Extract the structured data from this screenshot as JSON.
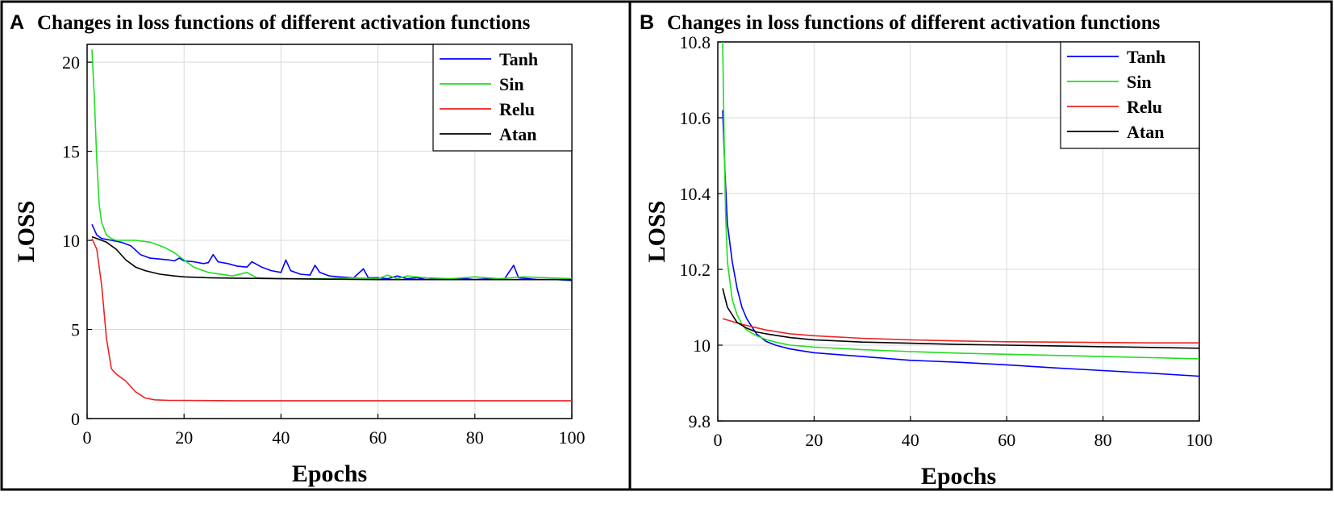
{
  "chart_data": [
    {
      "panel": "A",
      "type": "line",
      "title": "Changes in loss functions of different activation functions",
      "xlabel": "Epochs",
      "ylabel": "LOSS",
      "xlim": [
        0,
        100
      ],
      "ylim": [
        0,
        21
      ],
      "xticks": [
        0,
        20,
        40,
        60,
        80,
        100
      ],
      "yticks": [
        0,
        5,
        10,
        15,
        20
      ],
      "ytick_labels": [
        "0",
        "5",
        "10",
        "15",
        "20"
      ],
      "grid": true,
      "legend_position": "top-right",
      "series": [
        {
          "name": "Tanh",
          "color": "#0000ff",
          "x": [
            1,
            2,
            3,
            5,
            7,
            9,
            11,
            13,
            15,
            17,
            18,
            19,
            20,
            22,
            24,
            25,
            26,
            27,
            29,
            31,
            33,
            34,
            36,
            38,
            40,
            41,
            42,
            44,
            46,
            47,
            48,
            50,
            52,
            55,
            57,
            58,
            60,
            62,
            64,
            66,
            68,
            70,
            72,
            75,
            78,
            80,
            83,
            86,
            87,
            88,
            89,
            91,
            93,
            95,
            97,
            100
          ],
          "y": [
            10.9,
            10.3,
            10.1,
            10.0,
            9.9,
            9.7,
            9.2,
            9.0,
            8.95,
            8.9,
            8.85,
            9.0,
            8.85,
            8.8,
            8.7,
            8.75,
            9.2,
            8.8,
            8.7,
            8.55,
            8.5,
            8.8,
            8.5,
            8.3,
            8.2,
            8.9,
            8.3,
            8.1,
            8.05,
            8.6,
            8.2,
            8.0,
            7.95,
            7.9,
            8.4,
            7.9,
            7.9,
            7.85,
            8.0,
            7.85,
            7.9,
            7.8,
            7.85,
            7.8,
            7.85,
            7.8,
            7.85,
            7.8,
            8.2,
            8.6,
            7.9,
            7.85,
            7.8,
            7.8,
            7.8,
            7.75
          ]
        },
        {
          "name": "Sin",
          "color": "#22dd22",
          "x": [
            1,
            1.5,
            2,
            2.5,
            3,
            4,
            5,
            6,
            8,
            10,
            13,
            16,
            18,
            20,
            22,
            25,
            30,
            33,
            35,
            40,
            45,
            50,
            55,
            60,
            62,
            64,
            66,
            70,
            75,
            80,
            85,
            90,
            95,
            100
          ],
          "y": [
            20.7,
            18.0,
            14.5,
            12.0,
            11.0,
            10.3,
            10.1,
            10.0,
            10.0,
            10.0,
            9.9,
            9.6,
            9.3,
            8.9,
            8.5,
            8.2,
            8.0,
            8.2,
            7.9,
            7.85,
            7.85,
            7.85,
            7.9,
            7.85,
            8.05,
            7.85,
            8.0,
            7.9,
            7.85,
            7.95,
            7.85,
            7.95,
            7.9,
            7.85
          ]
        },
        {
          "name": "Relu",
          "color": "#ee2222",
          "x": [
            1,
            2,
            3,
            4,
            5,
            6,
            8,
            10,
            12,
            14,
            17,
            20,
            30,
            40,
            50,
            60,
            70,
            80,
            90,
            100
          ],
          "y": [
            10.1,
            9.5,
            7.5,
            4.5,
            2.8,
            2.5,
            2.1,
            1.5,
            1.15,
            1.05,
            1.02,
            1.02,
            1.0,
            1.0,
            1.0,
            1.0,
            1.0,
            1.0,
            1.0,
            1.0
          ]
        },
        {
          "name": "Atan",
          "color": "#000000",
          "x": [
            1,
            2,
            4,
            6,
            8,
            10,
            12,
            15,
            18,
            20,
            25,
            30,
            40,
            50,
            60,
            70,
            80,
            90,
            100
          ],
          "y": [
            10.2,
            10.1,
            9.9,
            9.5,
            8.9,
            8.5,
            8.3,
            8.1,
            8.0,
            7.95,
            7.9,
            7.88,
            7.85,
            7.82,
            7.8,
            7.8,
            7.8,
            7.8,
            7.8
          ]
        }
      ]
    },
    {
      "panel": "B",
      "type": "line",
      "title": "Changes in loss functions of different activation functions",
      "xlabel": "Epochs",
      "ylabel": "LOSS",
      "xlim": [
        0,
        100
      ],
      "ylim": [
        9.8,
        10.8
      ],
      "xticks": [
        0,
        20,
        40,
        60,
        80,
        100
      ],
      "yticks": [
        9.8,
        10.0,
        10.2,
        10.4,
        10.6,
        10.8
      ],
      "ytick_labels": [
        "9.8",
        "10",
        "10.2",
        "10.4",
        "10.6",
        "10.8"
      ],
      "grid": true,
      "legend_position": "top-right",
      "series": [
        {
          "name": "Tanh",
          "color": "#0000ff",
          "x": [
            1,
            1.5,
            2,
            3,
            4,
            5,
            6,
            8,
            10,
            12,
            15,
            20,
            30,
            40,
            50,
            60,
            70,
            80,
            90,
            100
          ],
          "y": [
            10.62,
            10.45,
            10.32,
            10.22,
            10.15,
            10.1,
            10.07,
            10.03,
            10.01,
            10.0,
            9.99,
            9.98,
            9.97,
            9.96,
            9.955,
            9.948,
            9.94,
            9.933,
            9.926,
            9.918
          ]
        },
        {
          "name": "Sin",
          "color": "#22dd22",
          "x": [
            1,
            1.3,
            1.6,
            2,
            3,
            4,
            5,
            6,
            8,
            10,
            12,
            15,
            20,
            30,
            40,
            50,
            60,
            70,
            80,
            90,
            100
          ],
          "y": [
            10.8,
            10.55,
            10.35,
            10.22,
            10.12,
            10.08,
            10.055,
            10.04,
            10.025,
            10.015,
            10.008,
            10.0,
            9.995,
            9.988,
            9.983,
            9.979,
            9.976,
            9.973,
            9.97,
            9.967,
            9.964
          ]
        },
        {
          "name": "Relu",
          "color": "#ee2222",
          "x": [
            1,
            5,
            10,
            15,
            20,
            30,
            40,
            50,
            60,
            70,
            80,
            90,
            100
          ],
          "y": [
            10.07,
            10.055,
            10.04,
            10.03,
            10.025,
            10.018,
            10.014,
            10.011,
            10.009,
            10.008,
            10.007,
            10.006,
            10.006
          ]
        },
        {
          "name": "Atan",
          "color": "#000000",
          "x": [
            1,
            2,
            3,
            4,
            6,
            8,
            10,
            15,
            20,
            30,
            40,
            50,
            60,
            70,
            80,
            90,
            100
          ],
          "y": [
            10.15,
            10.1,
            10.08,
            10.06,
            10.045,
            10.035,
            10.03,
            10.02,
            10.014,
            10.008,
            10.005,
            10.002,
            10.0,
            9.998,
            9.996,
            9.994,
            9.992
          ]
        }
      ]
    }
  ]
}
